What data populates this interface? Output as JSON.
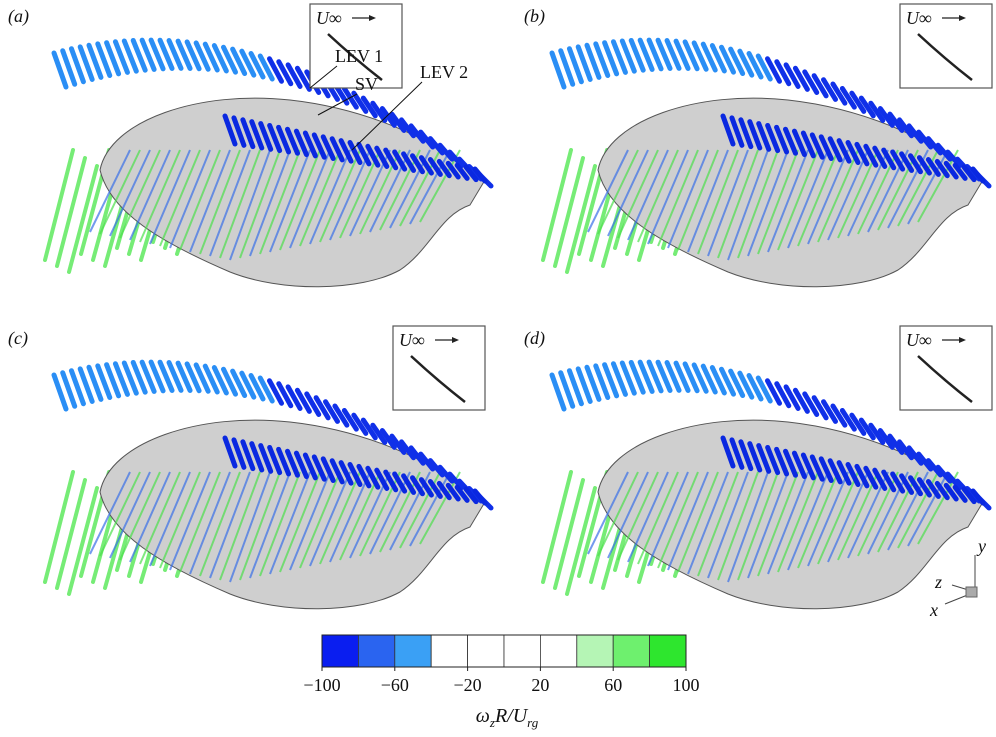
{
  "panels": [
    {
      "label": "(a)",
      "inset_label": "U∞"
    },
    {
      "label": "(b)",
      "inset_label": "U∞"
    },
    {
      "label": "(c)",
      "inset_label": "U∞"
    },
    {
      "label": "(d)",
      "inset_label": "U∞"
    }
  ],
  "annotations": [
    "LEV 1",
    "SV",
    "LEV 2"
  ],
  "axes_triad": {
    "y": "y",
    "z": "z",
    "x": "x"
  },
  "colorbar": {
    "lim": [
      -100,
      100
    ],
    "colors": [
      "#0a1ef0",
      "#2a64f0",
      "#3aa0f5",
      "#ffffff",
      "#ffffff",
      "#ffffff",
      "#ffffff",
      "#b5f5b5",
      "#6ef06e",
      "#2ee62e"
    ],
    "ticks": [
      {
        "value": -100,
        "label": "−100"
      },
      {
        "value": -60,
        "label": "−60"
      },
      {
        "value": -20,
        "label": "−20"
      },
      20,
      60,
      100
    ],
    "label": [
      "ω",
      "z",
      "R/U",
      "rg"
    ]
  }
}
